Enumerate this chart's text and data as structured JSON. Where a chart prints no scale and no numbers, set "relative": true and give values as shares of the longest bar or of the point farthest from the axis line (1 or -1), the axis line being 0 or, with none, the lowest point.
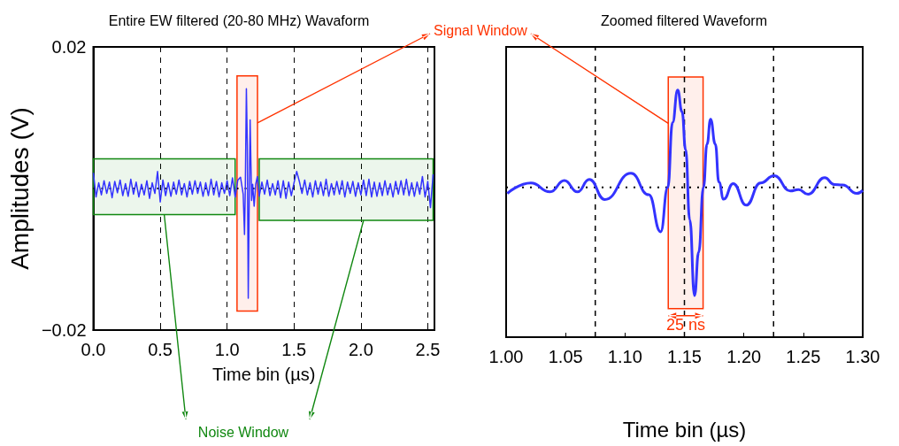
{
  "chart_data": [
    {
      "type": "line",
      "title": "Entire EW filtered (20-80 MHz) Wavaform",
      "xlabel": "Time bin (µs)",
      "ylabel": "Amplitudes (V)",
      "series": [
        {
          "color": "#3333ff",
          "x": [
            0,
            0.02,
            0.04,
            0.06,
            0.08,
            0.1,
            0.12,
            0.14,
            0.16,
            0.18,
            0.2,
            0.22,
            0.24,
            0.26,
            0.28,
            0.3,
            0.32,
            0.34,
            0.36,
            0.38,
            0.4,
            0.42,
            0.44,
            0.46,
            0.48,
            0.5,
            0.52,
            0.54,
            0.56,
            0.58,
            0.6,
            0.62,
            0.64,
            0.66,
            0.68,
            0.7,
            0.72,
            0.74,
            0.76,
            0.78,
            0.8,
            0.82,
            0.84,
            0.86,
            0.88,
            0.9,
            0.92,
            0.94,
            0.96,
            0.98,
            1.0,
            1.02,
            1.04,
            1.06,
            1.08,
            1.1,
            1.12,
            1.13,
            1.136,
            1.144,
            1.151,
            1.158,
            1.166,
            1.172,
            1.183,
            1.191,
            1.202,
            1.214,
            1.226,
            1.24,
            1.26,
            1.28,
            1.3,
            1.32,
            1.34,
            1.36,
            1.38,
            1.4,
            1.42,
            1.44,
            1.46,
            1.48,
            1.5,
            1.52,
            1.54,
            1.56,
            1.58,
            1.6,
            1.62,
            1.64,
            1.66,
            1.68,
            1.7,
            1.72,
            1.74,
            1.76,
            1.78,
            1.8,
            1.82,
            1.84,
            1.86,
            1.88,
            1.9,
            1.92,
            1.94,
            1.96,
            1.98,
            2.0,
            2.02,
            2.04,
            2.06,
            2.08,
            2.1,
            2.12,
            2.14,
            2.16,
            2.18,
            2.2,
            2.22,
            2.24,
            2.26,
            2.28,
            2.3,
            2.32,
            2.34,
            2.36,
            2.38,
            2.4,
            2.42,
            2.44,
            2.46,
            2.48,
            2.5,
            2.52,
            2.54
          ],
          "values": [
            0.0022,
            -0.0012,
            0.0008,
            -0.0009,
            0.0011,
            -0.0007,
            0.0009,
            -0.0013,
            0.001,
            -0.0006,
            0.0012,
            -0.001,
            0.0007,
            -0.0011,
            0.0013,
            -0.0008,
            0.0009,
            -0.0012,
            0.0006,
            -0.0009,
            0.0011,
            -0.0014,
            0.0008,
            -0.0007,
            0.0024,
            -0.0019,
            0.0012,
            -0.001,
            0.0008,
            -0.0011,
            0.0009,
            -0.0008,
            0.0012,
            -0.0009,
            0.0007,
            -0.0012,
            0.001,
            -0.0008,
            0.0011,
            -0.0007,
            0.0009,
            -0.0011,
            0.0008,
            -0.001,
            0.0013,
            -0.0009,
            0.001,
            -0.0012,
            0.0008,
            -0.0007,
            0.0011,
            -0.001,
            0.0015,
            -0.0012,
            0.0012,
            0.0016,
            -0.0008,
            -0.0065,
            0,
            0.0141,
            0.0062,
            -0.0155,
            0,
            0.0097,
            -0.0017,
            0.0006,
            -0.0025,
            0.0006,
            0.0017,
            -0.0011,
            0.0009,
            -0.0008,
            0.0012,
            -0.001,
            0.0007,
            -0.0009,
            0.0011,
            -0.0013,
            0.0011,
            -0.0014,
            0.0009,
            -0.001,
            0.0008,
            0.0024,
            0.001,
            -0.0007,
            0.0012,
            -0.0009,
            0.0008,
            -0.0012,
            0.0011,
            -0.0008,
            0.0009,
            -0.001,
            0.0013,
            -0.0011,
            0.0007,
            -0.0009,
            0.001,
            -0.0008,
            0.0011,
            -0.0012,
            0.0009,
            -0.0007,
            0.001,
            -0.0011,
            0.0008,
            -0.0009,
            0.0012,
            -0.001,
            0.0013,
            -0.0012,
            0.0009,
            -0.0011,
            0.0008,
            -0.001,
            0.0011,
            -0.0009,
            0.0007,
            -0.0012,
            0.001,
            -0.0008,
            0.0011,
            -0.0009,
            0.0013,
            -0.001,
            0.0008,
            -0.0011,
            0.0009,
            -0.0008,
            0.0017,
            -0.0012,
            0.001,
            -0.0027,
            0.002
          ]
        }
      ],
      "xlim": [
        0,
        2.55
      ],
      "xticks": [
        {
          "value": 0,
          "label": "0.0"
        },
        {
          "value": 0.5,
          "label": "0.5"
        },
        {
          "value": 1,
          "label": "1.0"
        },
        {
          "value": 1.5,
          "label": "1.5"
        },
        {
          "value": 2,
          "label": "2.0"
        },
        {
          "value": 2.5,
          "label": "2.5"
        }
      ],
      "ylim": [
        -0.02,
        0.02
      ],
      "yticks": [
        {
          "value": -0.02,
          "label": "−0.02"
        },
        0.02
      ],
      "grid": "x",
      "marker": "none",
      "ref_lines": [
        {
          "axis": "y",
          "value": 0,
          "color": "#000000",
          "line_style": "dotted"
        }
      ],
      "bands": [
        {
          "axis": "x",
          "from": 1.074,
          "to": 1.227,
          "color": "#ff3300"
        },
        {
          "axis": "x",
          "from": 0,
          "to": 1.06,
          "color": "#118811"
        },
        {
          "axis": "x",
          "from": 1.24,
          "to": 2.54,
          "color": "#118811"
        }
      ],
      "annotations": [
        "Signal Window",
        "Noise Window"
      ]
    },
    {
      "type": "line",
      "title": "Zoomed filtered Waveform",
      "xlabel": "Time bin (µs)",
      "relative": true,
      "series": [
        {
          "color": "#3333ff",
          "x": [
            1.001,
            1.0208,
            1.037,
            1.049,
            1.06,
            1.07,
            1.083,
            1.105,
            1.12,
            1.13,
            1.136,
            1.14,
            1.1443,
            1.148,
            1.151,
            1.1545,
            1.1585,
            1.162,
            1.166,
            1.169,
            1.172,
            1.176,
            1.179,
            1.183,
            1.191,
            1.202,
            1.214,
            1.2255,
            1.239,
            1.246,
            1.254,
            1.268,
            1.276,
            1.283,
            1.295,
            1.3
          ],
          "values": [
            -0.055,
            0.041,
            -0.041,
            0.063,
            -0.041,
            0.074,
            -0.112,
            0.131,
            -0.068,
            -0.41,
            0,
            0.6,
            0.9,
            0.7,
            0.35,
            -0.3,
            -1,
            -0.6,
            0,
            0.4,
            0.63,
            0.4,
            0.05,
            -0.109,
            0.036,
            -0.164,
            0.041,
            0.109,
            -0.033,
            -0.019,
            -0.063,
            0.09,
            0.027,
            0.022,
            -0.055,
            -0.027
          ]
        }
      ],
      "xlim": [
        1.0,
        1.3
      ],
      "xticks": [
        {
          "value": 1,
          "label": "1.00"
        },
        {
          "value": 1.05,
          "label": "1.05"
        },
        {
          "value": 1.1,
          "label": "1.10"
        },
        {
          "value": 1.15,
          "label": "1.15"
        },
        {
          "value": 1.2,
          "label": "1.20"
        },
        {
          "value": 1.25,
          "label": "1.25"
        },
        {
          "value": 1.3,
          "label": "1.30"
        }
      ],
      "grid": false,
      "marker": "none",
      "ref_lines": [
        {
          "axis": "y",
          "value": 0,
          "color": "#000000",
          "line_style": "dotted"
        },
        {
          "axis": "x",
          "value": 1.075,
          "color": "#000000",
          "line_style": "dashed"
        },
        {
          "axis": "x",
          "value": 1.15,
          "color": "#000000",
          "line_style": "dashed"
        },
        {
          "axis": "x",
          "value": 1.225,
          "color": "#000000",
          "line_style": "dashed"
        }
      ],
      "bands": [
        {
          "axis": "x",
          "from": 1.1364,
          "to": 1.1657,
          "color": "#ff3300"
        }
      ],
      "annotations": [
        "25 ns"
      ]
    }
  ]
}
